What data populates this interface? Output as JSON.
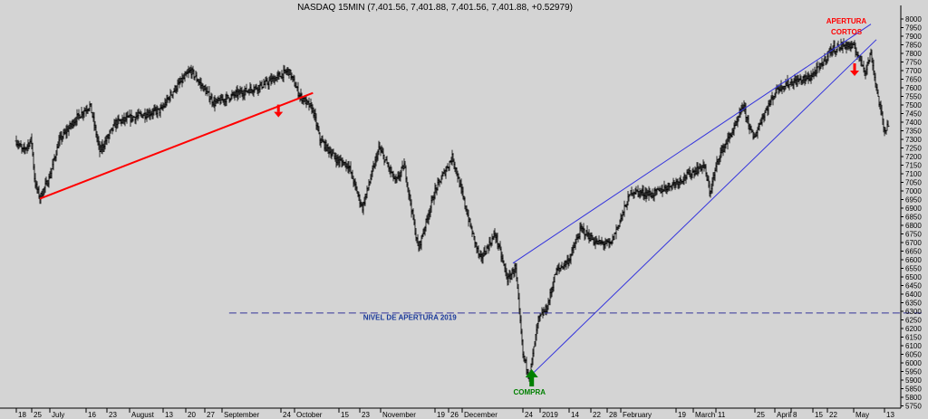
{
  "chart_data": {
    "type": "ohlc",
    "title": "NASDAQ 15MIN (7,401.56, 7,401.88, 7,401.56, 7,401.88, +0.52979)",
    "ylim": [
      5700,
      8000
    ],
    "y_ticks": [
      5750,
      5800,
      5850,
      5900,
      5950,
      6000,
      6050,
      6100,
      6150,
      6200,
      6250,
      6300,
      6350,
      6400,
      6450,
      6500,
      6550,
      6600,
      6650,
      6700,
      6750,
      6800,
      6850,
      6900,
      6950,
      7000,
      7050,
      7100,
      7150,
      7200,
      7250,
      7300,
      7350,
      7400,
      7450,
      7500,
      7550,
      7600,
      7650,
      7700,
      7750,
      7800,
      7850,
      7900,
      7950,
      8000
    ],
    "x_ticks": [
      "18",
      "25",
      "July",
      "16",
      "23",
      "August",
      "13",
      "20",
      "27",
      "September",
      "24",
      "October",
      "15",
      "23",
      "November",
      "19",
      "26",
      "December",
      "24",
      "2019",
      "14",
      "22",
      "28",
      "February",
      "19",
      "March",
      "11",
      "25",
      "April",
      "8",
      "15",
      "22",
      "May",
      "13"
    ],
    "date_range": [
      "2018-06-18",
      "2019-05-13"
    ],
    "price_path": [
      [
        "2018-06-18",
        7290
      ],
      [
        "2018-06-22",
        7230
      ],
      [
        "2018-06-27",
        7300
      ],
      [
        "2018-06-29",
        7050
      ],
      [
        "2018-07-02",
        6960
      ],
      [
        "2018-07-06",
        7080
      ],
      [
        "2018-07-10",
        7290
      ],
      [
        "2018-07-17",
        7420
      ],
      [
        "2018-07-23",
        7500
      ],
      [
        "2018-07-27",
        7230
      ],
      [
        "2018-08-03",
        7400
      ],
      [
        "2018-08-13",
        7440
      ],
      [
        "2018-08-20",
        7470
      ],
      [
        "2018-08-24",
        7580
      ],
      [
        "2018-08-30",
        7700
      ],
      [
        "2018-09-07",
        7510
      ],
      [
        "2018-09-14",
        7560
      ],
      [
        "2018-09-24",
        7620
      ],
      [
        "2018-10-01",
        7700
      ],
      [
        "2018-10-04",
        7560
      ],
      [
        "2018-10-08",
        7470
      ],
      [
        "2018-10-10",
        7300
      ],
      [
        "2018-10-15",
        7180
      ],
      [
        "2018-10-19",
        7150
      ],
      [
        "2018-10-24",
        6900
      ],
      [
        "2018-10-30",
        7250
      ],
      [
        "2018-11-05",
        7050
      ],
      [
        "2018-11-08",
        7150
      ],
      [
        "2018-11-13",
        6660
      ],
      [
        "2018-11-19",
        7000
      ],
      [
        "2018-11-26",
        7200
      ],
      [
        "2018-12-03",
        6800
      ],
      [
        "2018-12-07",
        6600
      ],
      [
        "2018-12-13",
        6750
      ],
      [
        "2018-12-18",
        6480
      ],
      [
        "2018-12-21",
        6560
      ],
      [
        "2018-12-24",
        6050
      ],
      [
        "2018-12-27",
        5920
      ],
      [
        "2018-12-31",
        6250
      ],
      [
        "2019-01-04",
        6320
      ],
      [
        "2019-01-08",
        6530
      ],
      [
        "2019-01-14",
        6600
      ],
      [
        "2019-01-18",
        6780
      ],
      [
        "2019-01-23",
        6700
      ],
      [
        "2019-01-28",
        6690
      ],
      [
        "2019-02-04",
        7000
      ],
      [
        "2019-02-11",
        6980
      ],
      [
        "2019-02-19",
        7050
      ],
      [
        "2019-02-26",
        7100
      ],
      [
        "2019-03-05",
        7150
      ],
      [
        "2019-03-08",
        6990
      ],
      [
        "2019-03-12",
        7200
      ],
      [
        "2019-03-19",
        7400
      ],
      [
        "2019-03-21",
        7500
      ],
      [
        "2019-03-25",
        7300
      ],
      [
        "2019-03-28",
        7420
      ],
      [
        "2019-04-03",
        7600
      ],
      [
        "2019-04-08",
        7630
      ],
      [
        "2019-04-15",
        7660
      ],
      [
        "2019-04-19",
        7720
      ],
      [
        "2019-04-23",
        7820
      ],
      [
        "2019-04-29",
        7850
      ],
      [
        "2019-05-02",
        7830
      ],
      [
        "2019-05-06",
        7700
      ],
      [
        "2019-05-08",
        7800
      ],
      [
        "2019-05-10",
        7600
      ],
      [
        "2019-05-13",
        7350
      ],
      [
        "2019-05-15",
        7401
      ]
    ],
    "lines": [
      {
        "color": "#ff0000",
        "from": [
          "2018-07-02",
          6955
        ],
        "to": [
          "2018-10-08",
          7570
        ]
      },
      {
        "color": "#3333dd",
        "from": [
          "2018-12-20",
          6580
        ],
        "to": [
          "2019-05-08",
          7970
        ]
      },
      {
        "color": "#3333dd",
        "from": [
          "2018-12-27",
          5920
        ],
        "to": [
          "2019-05-10",
          7880
        ]
      },
      {
        "color": "#333399",
        "dashed": true,
        "from": [
          "2018-09-12",
          6290
        ],
        "to": [
          "2019-05-31",
          6290
        ]
      }
    ],
    "annotations": [
      {
        "text": "NIVEL DE APERTURA 2019",
        "color": "#1a3a9a",
        "x": "2018-11-10",
        "y": 6250
      },
      {
        "text": "COMPRA",
        "color": "#008000",
        "x": "2018-12-27",
        "y": 5815
      },
      {
        "text": "APERTURA",
        "color": "#ff0000",
        "x": "2019-04-29",
        "y": 7975
      },
      {
        "text": "CORTOS",
        "color": "#ff0000",
        "x": "2019-04-29",
        "y": 7910
      }
    ],
    "arrows": [
      {
        "direction": "down",
        "color": "#ff0000",
        "x": "2018-09-28",
        "y": 7460
      },
      {
        "direction": "down",
        "color": "#ff0000",
        "x": "2019-05-02",
        "y": 7700
      },
      {
        "direction": "up",
        "color": "#008000",
        "x": "2018-12-28",
        "y": 5900
      }
    ],
    "grid": false
  }
}
